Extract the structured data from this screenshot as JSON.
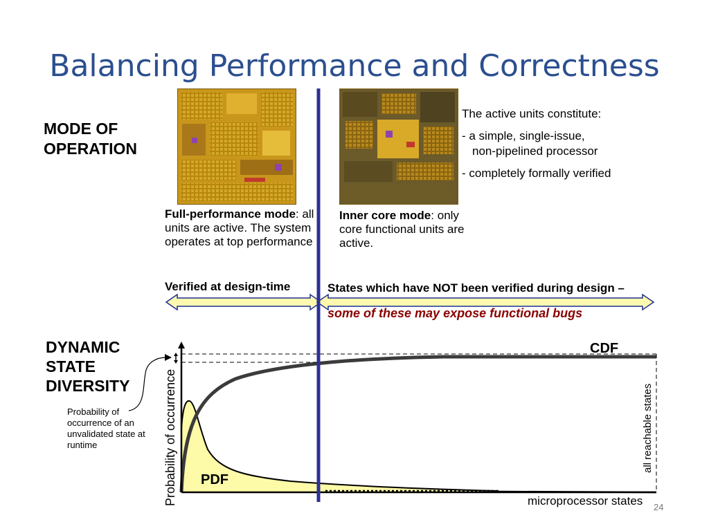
{
  "title": "Balancing Performance and Correctness",
  "mode_label_line1": "MODE OF",
  "mode_label_line2": "OPERATION",
  "dynamic_label_line1": "DYNAMIC",
  "dynamic_label_line2": "STATE",
  "dynamic_label_line3": "DIVERSITY",
  "full_mode": {
    "heading": "Full-performance mode",
    "colon": ":",
    "text": "all units are active. The system operates at top performance"
  },
  "inner_mode": {
    "heading": "Inner core mode",
    "colon": ":",
    "text": "only core functional units are active."
  },
  "active_units": {
    "intro": "The active units constitute:",
    "item1_line1": "-  a simple, single-issue,",
    "item1_line2": "non-pipelined processor",
    "item2": "-  completely formally verified"
  },
  "verified_label": "Verified at design-time",
  "not_verified_label": "States which have NOT been verified during design –",
  "bugs_label": "some of these may expose functional bugs",
  "probability_note": "Probability of occurrence of an unvalidated state at runtime",
  "y_axis_label": "Probability of occurrence",
  "x_axis_label": "microprocessor states",
  "cdf_label": "CDF",
  "pdf_label": "PDF",
  "reachable_label": "all reachable states",
  "page_number": "24",
  "colors": {
    "title": "#2b4f8f",
    "divider": "#2e3192",
    "bugs_text": "#8b0000",
    "pdf_fill": "#fdfaa8",
    "arrow_fill": "#fdfab0",
    "arrow_stroke": "#1f2e8f"
  }
}
